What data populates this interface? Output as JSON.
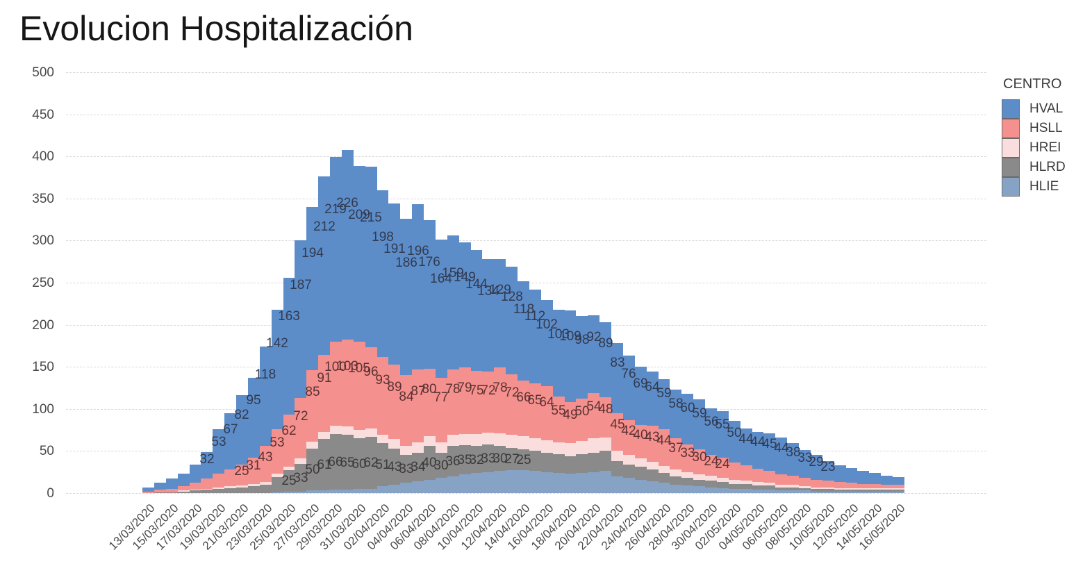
{
  "title": "Evolucion Hospitalización",
  "legend": {
    "title": "CENTRO",
    "items": [
      {
        "label": "HVAL",
        "color": "#5c8dc9"
      },
      {
        "label": "HSLL",
        "color": "#f4908e"
      },
      {
        "label": "HREI",
        "color": "#fadede"
      },
      {
        "label": "HLRD",
        "color": "#8a8a8a"
      },
      {
        "label": "HLIE",
        "color": "#86a3c6"
      }
    ]
  },
  "chart_data": {
    "type": "bar",
    "stacked": true,
    "title": "Evolucion Hospitalización",
    "xlabel": "",
    "ylabel": "",
    "ylim": [
      0,
      500
    ],
    "yticks": [
      0,
      50,
      100,
      150,
      200,
      250,
      300,
      350,
      400,
      450,
      500
    ],
    "grid": "horizontal-dashed",
    "legend_position": "right",
    "x_tick_every": 2,
    "x": [
      "13/03/2020",
      "14/03/2020",
      "15/03/2020",
      "16/03/2020",
      "17/03/2020",
      "18/03/2020",
      "19/03/2020",
      "20/03/2020",
      "21/03/2020",
      "22/03/2020",
      "23/03/2020",
      "24/03/2020",
      "25/03/2020",
      "26/03/2020",
      "27/03/2020",
      "28/03/2020",
      "29/03/2020",
      "30/03/2020",
      "31/03/2020",
      "01/04/2020",
      "02/04/2020",
      "03/04/2020",
      "04/04/2020",
      "05/04/2020",
      "06/04/2020",
      "07/04/2020",
      "08/04/2020",
      "09/04/2020",
      "10/04/2020",
      "11/04/2020",
      "12/04/2020",
      "13/04/2020",
      "14/04/2020",
      "15/04/2020",
      "16/04/2020",
      "17/04/2020",
      "18/04/2020",
      "19/04/2020",
      "20/04/2020",
      "21/04/2020",
      "22/04/2020",
      "23/04/2020",
      "24/04/2020",
      "25/04/2020",
      "26/04/2020",
      "27/04/2020",
      "28/04/2020",
      "29/04/2020",
      "30/04/2020",
      "01/05/2020",
      "02/05/2020",
      "03/05/2020",
      "04/05/2020",
      "05/05/2020",
      "06/05/2020",
      "07/05/2020",
      "08/05/2020",
      "09/05/2020",
      "10/05/2020",
      "11/05/2020",
      "12/05/2020",
      "13/05/2020",
      "14/05/2020",
      "15/05/2020",
      "16/05/2020"
    ],
    "series": [
      {
        "name": "HLIE",
        "color": "#86a3c6",
        "labels": {
          "show": false
        },
        "values": [
          0,
          0,
          0,
          0,
          0,
          0,
          0,
          0,
          0,
          0,
          0,
          1,
          2,
          2,
          3,
          3,
          4,
          4,
          5,
          5,
          8,
          10,
          12,
          14,
          16,
          18,
          20,
          22,
          24,
          25,
          26,
          27,
          27,
          26,
          25,
          24,
          23,
          24,
          25,
          26,
          20,
          18,
          16,
          14,
          12,
          10,
          9,
          8,
          7,
          6,
          5,
          5,
          4,
          4,
          3,
          3,
          3,
          2,
          2,
          2,
          2,
          2,
          2,
          2,
          2
        ]
      },
      {
        "name": "HLRD",
        "color": "#8a8a8a",
        "labels": {
          "show": true,
          "min_value": 25,
          "vjust": 0.5,
          "color": "#3d3a3a"
        },
        "values": [
          0,
          1,
          1,
          2,
          3,
          4,
          5,
          6,
          7,
          8,
          10,
          18,
          25,
          33,
          50,
          61,
          66,
          65,
          60,
          62,
          51,
          43,
          33,
          34,
          40,
          30,
          36,
          35,
          32,
          33,
          30,
          27,
          25,
          24,
          23,
          22,
          21,
          22,
          23,
          24,
          18,
          16,
          15,
          14,
          12,
          10,
          9,
          8,
          8,
          7,
          6,
          6,
          5,
          5,
          4,
          4,
          3,
          3,
          3,
          2,
          2,
          2,
          2,
          2,
          2
        ]
      },
      {
        "name": "HREI",
        "color": "#fadede",
        "labels": {
          "show": false
        },
        "values": [
          0,
          0,
          0,
          1,
          1,
          1,
          2,
          2,
          2,
          3,
          3,
          4,
          4,
          6,
          8,
          9,
          10,
          10,
          10,
          10,
          10,
          11,
          11,
          12,
          12,
          12,
          13,
          13,
          14,
          14,
          15,
          15,
          16,
          15,
          15,
          14,
          15,
          16,
          17,
          16,
          12,
          11,
          10,
          9,
          8,
          8,
          7,
          6,
          6,
          5,
          5,
          4,
          4,
          3,
          3,
          3,
          2,
          2,
          2,
          2,
          2,
          2,
          2,
          2,
          2
        ]
      },
      {
        "name": "HSLL",
        "color": "#f4908e",
        "labels": {
          "show": true,
          "min_value": 24,
          "vjust": 0.7,
          "color": "#5d3232"
        },
        "values": [
          2,
          3,
          4,
          5,
          8,
          12,
          16,
          20,
          25,
          31,
          43,
          53,
          62,
          72,
          85,
          91,
          100,
          103,
          105,
          96,
          93,
          89,
          84,
          87,
          80,
          77,
          78,
          79,
          75,
          72,
          78,
          72,
          66,
          65,
          64,
          55,
          49,
          50,
          54,
          48,
          45,
          42,
          40,
          43,
          44,
          37,
          33,
          30,
          24,
          24,
          20,
          18,
          16,
          14,
          12,
          11,
          10,
          9,
          8,
          7,
          6,
          5,
          5,
          4,
          4
        ]
      },
      {
        "name": "HVAL",
        "color": "#5c8dc9",
        "labels": {
          "show": true,
          "min_value": 23,
          "vjust": 0.72,
          "color": "#323a50"
        },
        "values": [
          5,
          8,
          12,
          15,
          22,
          32,
          53,
          67,
          82,
          95,
          118,
          142,
          163,
          187,
          194,
          212,
          219,
          226,
          209,
          215,
          198,
          191,
          186,
          196,
          176,
          164,
          159,
          149,
          144,
          134,
          129,
          128,
          118,
          112,
          102,
          103,
          109,
          98,
          92,
          89,
          83,
          76,
          69,
          64,
          59,
          58,
          60,
          59,
          56,
          55,
          50,
          44,
          44,
          45,
          44,
          38,
          33,
          29,
          23,
          20,
          18,
          15,
          13,
          11,
          9
        ]
      }
    ]
  }
}
